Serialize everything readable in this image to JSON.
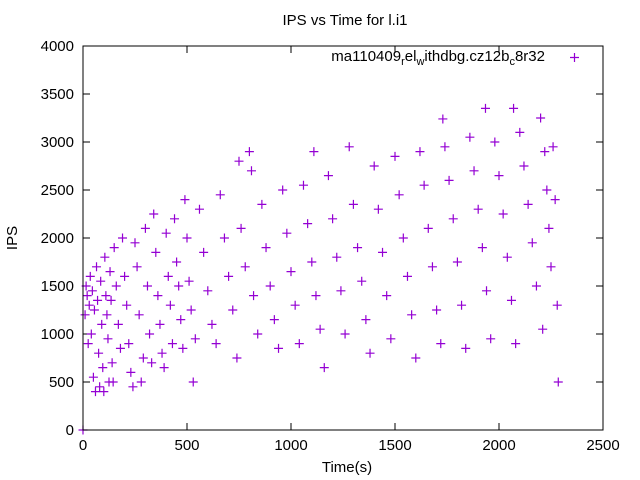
{
  "chart_data": {
    "type": "scatter",
    "title": "IPS vs Time for l.i1",
    "xlabel": "Time(s)",
    "ylabel": "IPS",
    "xlim": [
      0,
      2500
    ],
    "ylim": [
      0,
      4000
    ],
    "xticks": [
      "0",
      "500",
      "1000",
      "1500",
      "2000",
      "2500"
    ],
    "yticks": [
      "0",
      "500",
      "1000",
      "1500",
      "2000",
      "2500",
      "3000",
      "3500",
      "4000"
    ],
    "legend_position": "top-right",
    "grid": false,
    "series": [
      {
        "name": "ma110409_rel_withdbg.cz12b_c8r32",
        "legend_main": "ma110409",
        "legend_parts": [
          [
            "r",
            "el"
          ],
          [
            "w",
            "ithdbg.cz12b"
          ],
          [
            "c",
            "8r32"
          ]
        ],
        "color": "#9400d3",
        "marker": "plus",
        "points": [
          [
            0,
            0
          ],
          [
            10,
            1200
          ],
          [
            15,
            1500
          ],
          [
            20,
            1400
          ],
          [
            25,
            900
          ],
          [
            30,
            1300
          ],
          [
            35,
            1600
          ],
          [
            40,
            1000
          ],
          [
            45,
            1450
          ],
          [
            50,
            550
          ],
          [
            55,
            1250
          ],
          [
            60,
            400
          ],
          [
            65,
            1700
          ],
          [
            70,
            1350
          ],
          [
            75,
            800
          ],
          [
            80,
            450
          ],
          [
            85,
            1550
          ],
          [
            90,
            1100
          ],
          [
            95,
            650
          ],
          [
            100,
            400
          ],
          [
            105,
            1800
          ],
          [
            110,
            1400
          ],
          [
            115,
            1200
          ],
          [
            120,
            950
          ],
          [
            125,
            500
          ],
          [
            130,
            1650
          ],
          [
            135,
            1350
          ],
          [
            140,
            700
          ],
          [
            145,
            500
          ],
          [
            150,
            1900
          ],
          [
            160,
            1500
          ],
          [
            170,
            1100
          ],
          [
            180,
            850
          ],
          [
            190,
            2000
          ],
          [
            200,
            1600
          ],
          [
            210,
            1300
          ],
          [
            220,
            900
          ],
          [
            230,
            600
          ],
          [
            240,
            450
          ],
          [
            250,
            1950
          ],
          [
            260,
            1700
          ],
          [
            270,
            1200
          ],
          [
            280,
            500
          ],
          [
            290,
            750
          ],
          [
            300,
            2100
          ],
          [
            310,
            1500
          ],
          [
            320,
            1000
          ],
          [
            330,
            700
          ],
          [
            340,
            2250
          ],
          [
            350,
            1850
          ],
          [
            360,
            1400
          ],
          [
            370,
            1100
          ],
          [
            380,
            800
          ],
          [
            390,
            650
          ],
          [
            400,
            2050
          ],
          [
            410,
            1600
          ],
          [
            420,
            1300
          ],
          [
            430,
            900
          ],
          [
            440,
            2200
          ],
          [
            450,
            1750
          ],
          [
            460,
            1500
          ],
          [
            470,
            1150
          ],
          [
            480,
            850
          ],
          [
            490,
            2400
          ],
          [
            500,
            2000
          ],
          [
            510,
            1550
          ],
          [
            520,
            1250
          ],
          [
            530,
            500
          ],
          [
            540,
            950
          ],
          [
            560,
            2300
          ],
          [
            580,
            1850
          ],
          [
            600,
            1450
          ],
          [
            620,
            1100
          ],
          [
            640,
            900
          ],
          [
            660,
            2450
          ],
          [
            680,
            2000
          ],
          [
            700,
            1600
          ],
          [
            720,
            1250
          ],
          [
            740,
            750
          ],
          [
            750,
            2800
          ],
          [
            760,
            2100
          ],
          [
            780,
            1700
          ],
          [
            800,
            2900
          ],
          [
            810,
            2700
          ],
          [
            820,
            1400
          ],
          [
            840,
            1000
          ],
          [
            860,
            2350
          ],
          [
            880,
            1900
          ],
          [
            900,
            1500
          ],
          [
            920,
            1150
          ],
          [
            940,
            850
          ],
          [
            960,
            2500
          ],
          [
            980,
            2050
          ],
          [
            1000,
            1650
          ],
          [
            1020,
            1300
          ],
          [
            1040,
            900
          ],
          [
            1060,
            2550
          ],
          [
            1080,
            2150
          ],
          [
            1100,
            1750
          ],
          [
            1110,
            2900
          ],
          [
            1120,
            1400
          ],
          [
            1140,
            1050
          ],
          [
            1160,
            650
          ],
          [
            1180,
            2650
          ],
          [
            1200,
            2200
          ],
          [
            1220,
            1800
          ],
          [
            1240,
            1450
          ],
          [
            1260,
            1000
          ],
          [
            1280,
            2950
          ],
          [
            1300,
            2350
          ],
          [
            1320,
            1900
          ],
          [
            1340,
            1550
          ],
          [
            1360,
            1150
          ],
          [
            1380,
            800
          ],
          [
            1400,
            2750
          ],
          [
            1420,
            2300
          ],
          [
            1440,
            1850
          ],
          [
            1460,
            1400
          ],
          [
            1480,
            950
          ],
          [
            1500,
            2850
          ],
          [
            1520,
            2450
          ],
          [
            1540,
            2000
          ],
          [
            1560,
            1600
          ],
          [
            1580,
            1200
          ],
          [
            1600,
            750
          ],
          [
            1620,
            2900
          ],
          [
            1640,
            2550
          ],
          [
            1660,
            2100
          ],
          [
            1680,
            1700
          ],
          [
            1700,
            1250
          ],
          [
            1720,
            900
          ],
          [
            1730,
            3240
          ],
          [
            1740,
            2950
          ],
          [
            1760,
            2600
          ],
          [
            1780,
            2200
          ],
          [
            1800,
            1750
          ],
          [
            1820,
            1300
          ],
          [
            1840,
            850
          ],
          [
            1860,
            3050
          ],
          [
            1880,
            2700
          ],
          [
            1900,
            2300
          ],
          [
            1920,
            1900
          ],
          [
            1935,
            3350
          ],
          [
            1940,
            1450
          ],
          [
            1960,
            950
          ],
          [
            1980,
            3000
          ],
          [
            2000,
            2650
          ],
          [
            2020,
            2250
          ],
          [
            2040,
            1800
          ],
          [
            2060,
            1350
          ],
          [
            2070,
            3350
          ],
          [
            2080,
            900
          ],
          [
            2100,
            3100
          ],
          [
            2120,
            2750
          ],
          [
            2140,
            2350
          ],
          [
            2160,
            1950
          ],
          [
            2180,
            1500
          ],
          [
            2200,
            3250
          ],
          [
            2210,
            1050
          ],
          [
            2220,
            2900
          ],
          [
            2230,
            2500
          ],
          [
            2240,
            2100
          ],
          [
            2250,
            1700
          ],
          [
            2260,
            2950
          ],
          [
            2270,
            2400
          ],
          [
            2280,
            1300
          ],
          [
            2285,
            500
          ]
        ]
      }
    ]
  }
}
